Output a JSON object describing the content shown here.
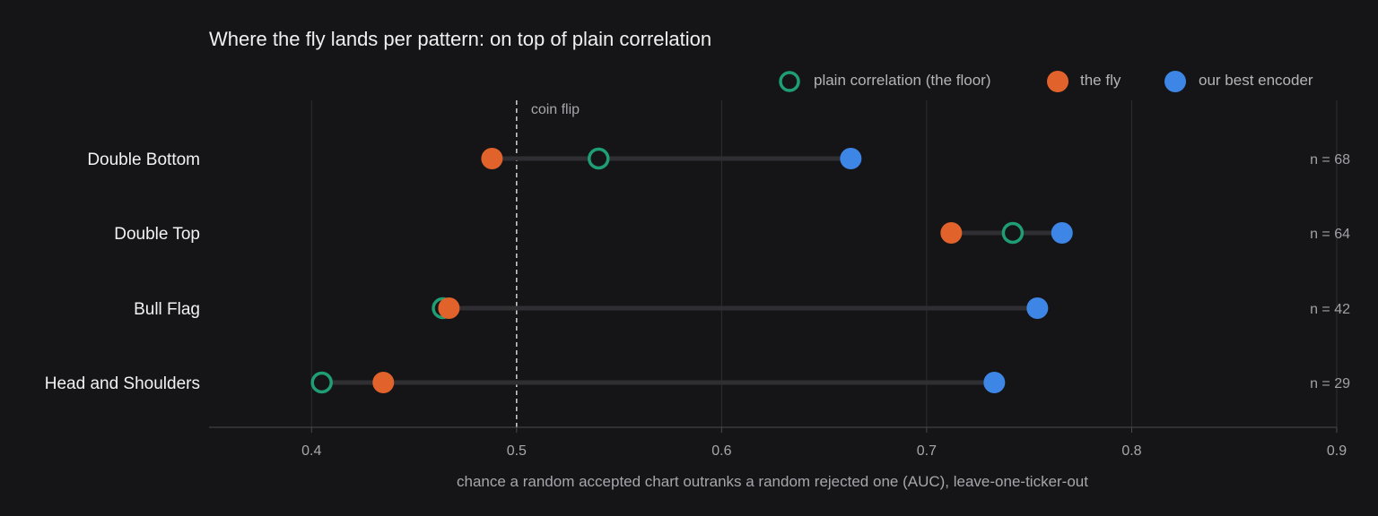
{
  "chart_data": {
    "type": "dot-range",
    "title": "Where the fly lands per pattern: on top of plain correlation",
    "xlabel": "chance a random accepted chart outranks a random rejected one (AUC), leave-one-ticker-out",
    "xlim": [
      0.35,
      0.9
    ],
    "xticks": [
      0.4,
      0.5,
      0.6,
      0.7,
      0.8,
      0.9
    ],
    "xtick_labels": [
      "0.4",
      "0.5",
      "0.6",
      "0.7",
      "0.8",
      "0.9"
    ],
    "grid": "vertical",
    "legend_position": "top-right",
    "reference_line": {
      "x": 0.5,
      "label": "coin flip",
      "style": "dashed"
    },
    "categories": [
      "Double Bottom",
      "Double Top",
      "Bull Flag",
      "Head and Shoulders"
    ],
    "series": [
      {
        "name": "plain correlation (the floor)",
        "marker": "hollow-circle",
        "color": "#1f9e74",
        "values": [
          0.54,
          0.742,
          0.464,
          0.405
        ]
      },
      {
        "name": "the fly",
        "marker": "circle",
        "color": "#e2622b",
        "values": [
          0.488,
          0.712,
          0.467,
          0.435
        ]
      },
      {
        "name": "our best encoder",
        "marker": "circle",
        "color": "#3d86e6",
        "values": [
          0.663,
          0.766,
          0.754,
          0.733
        ]
      }
    ],
    "annotations": [
      "n = 68",
      "n = 64",
      "n = 42",
      "n = 29"
    ]
  },
  "colors": {
    "background": "#151517",
    "grid": "#2e2e33",
    "axis": "#4a4a50",
    "range_bar": "#2f2f33",
    "reference": "#c8c8cc"
  }
}
